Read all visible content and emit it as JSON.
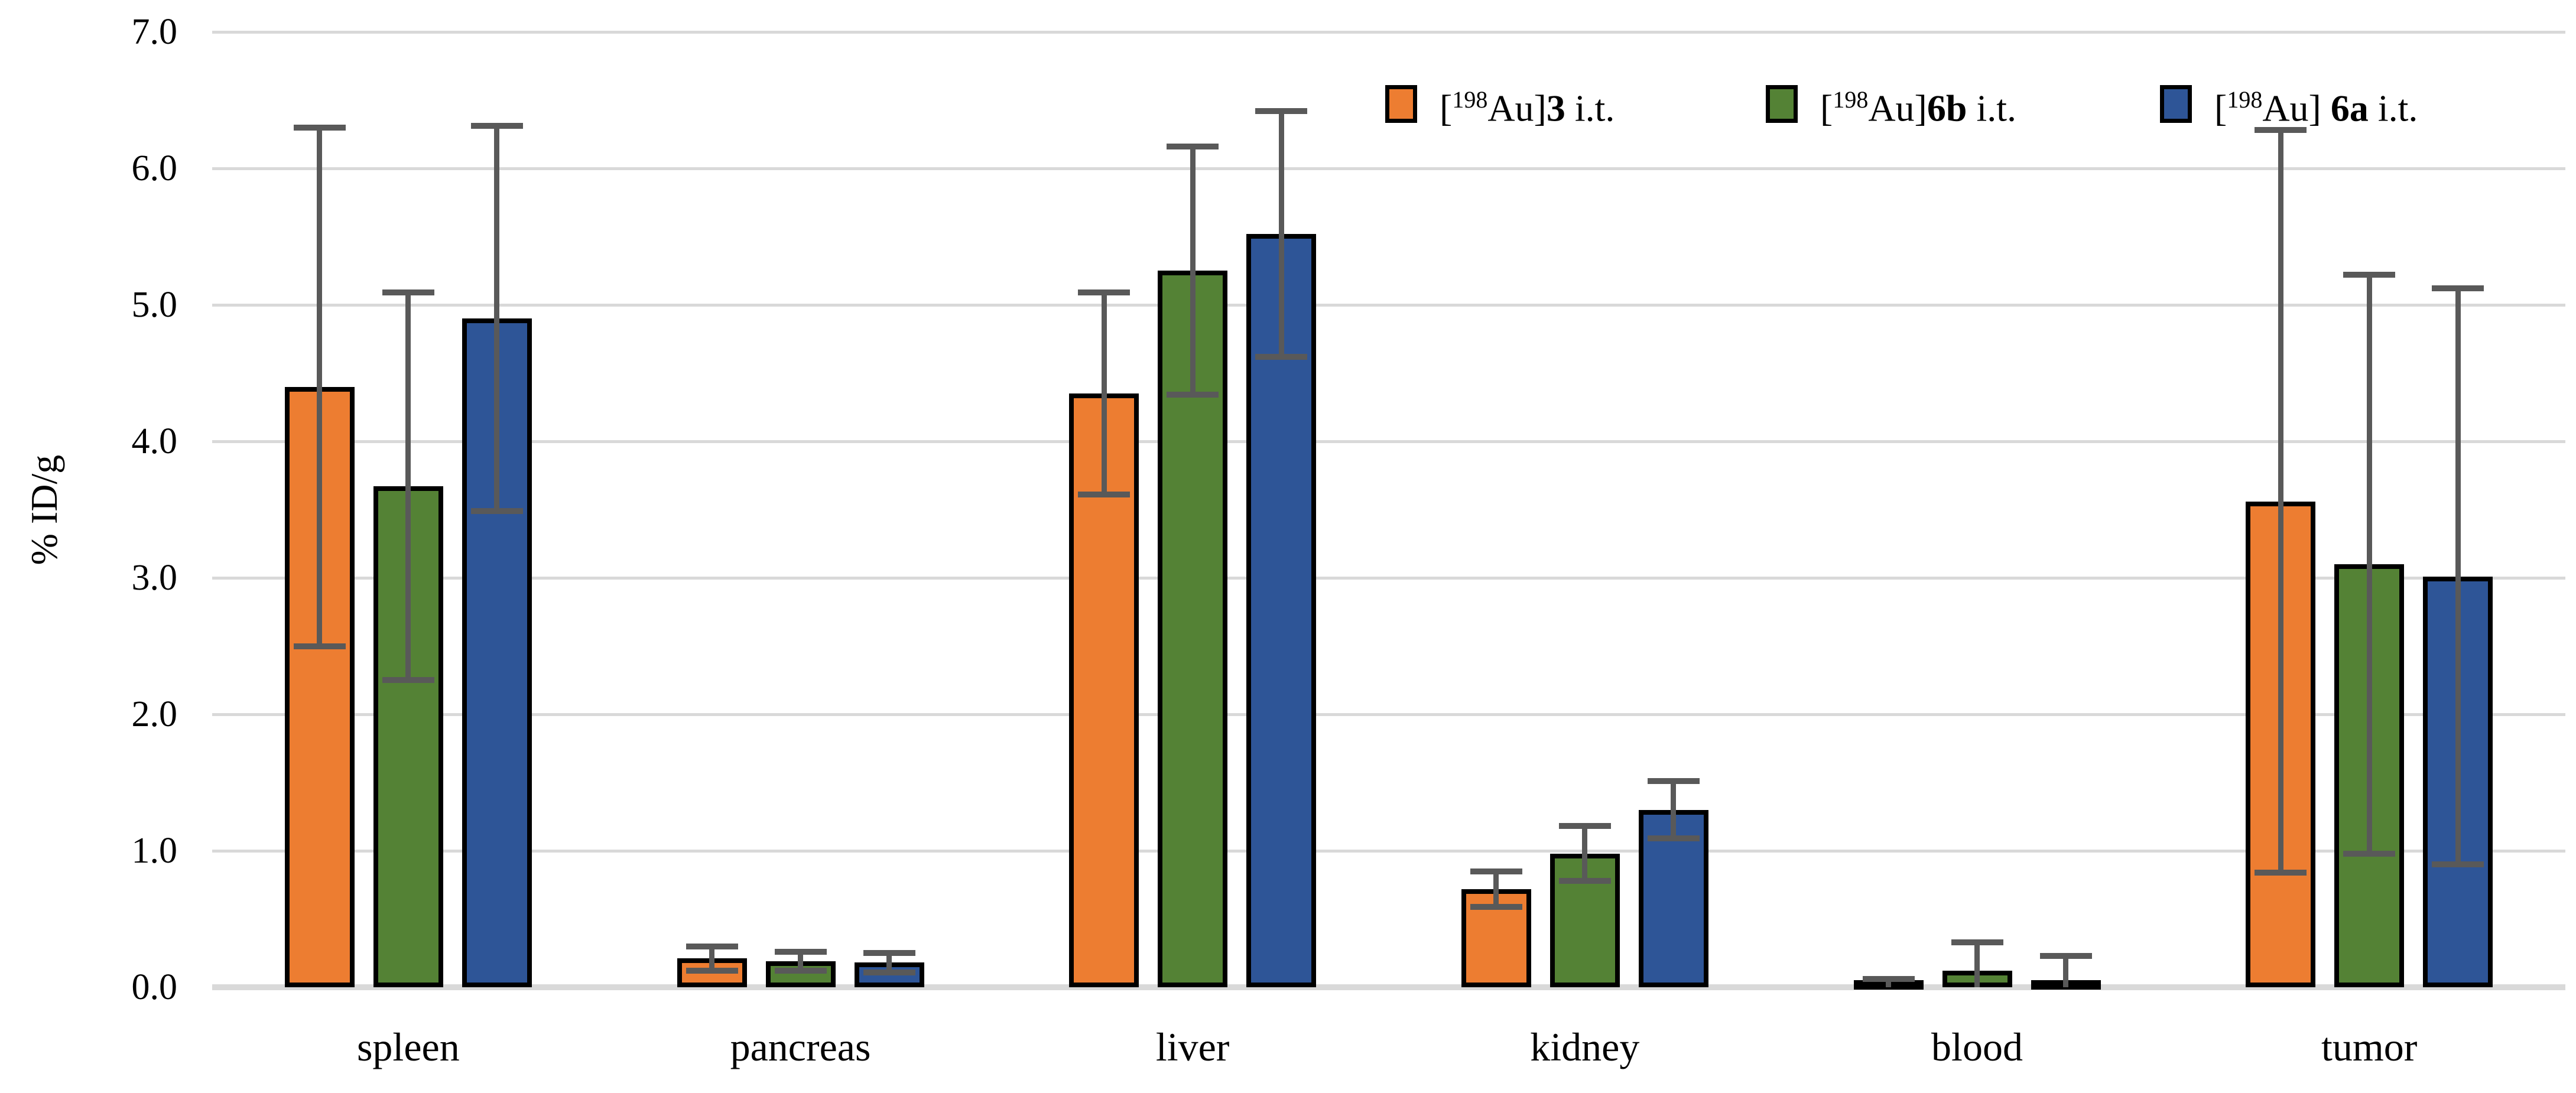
{
  "figure": {
    "background": "#FFFFFF",
    "text_color": "#000000"
  },
  "chart_data": {
    "type": "bar",
    "title": "",
    "xlabel": "",
    "ylabel": "% ID/g",
    "ylim": [
      0,
      7
    ],
    "ytick_labels": [
      "0.0",
      "1.0",
      "2.0",
      "3.0",
      "4.0",
      "5.0",
      "6.0",
      "7.0"
    ],
    "grid": true,
    "gridline_color": "#D9D9D9",
    "baseline_color": "#D9D9D9",
    "bar_border_color": "#000000",
    "error_bar_color": "#595959",
    "legend_position": "top-right",
    "categories": [
      "spleen",
      "pancreas",
      "liver",
      "kidney",
      "blood",
      "tumor"
    ],
    "series": [
      {
        "name": "[198Au]3 i.t.",
        "label_parts": {
          "bracket_isotope": "198",
          "element_close": "Au]",
          "space_before_compound": "",
          "compound": "3",
          "suffix": " i.t."
        },
        "color": "#ED7D31",
        "values": [
          4.4,
          0.21,
          4.35,
          0.72,
          0.03,
          3.56
        ],
        "errors": [
          1.9,
          0.09,
          0.74,
          0.13,
          0.03,
          2.72
        ]
      },
      {
        "name": "[198Au]6b i.t.",
        "label_parts": {
          "bracket_isotope": "198",
          "element_close": "Au]",
          "space_before_compound": "",
          "compound": "6b",
          "suffix": " i.t."
        },
        "color": "#548235",
        "values": [
          3.67,
          0.19,
          5.25,
          0.98,
          0.12,
          3.1
        ],
        "errors": [
          1.42,
          0.07,
          0.91,
          0.2,
          0.21,
          2.12
        ]
      },
      {
        "name": "[198Au] 6a i.t.",
        "label_parts": {
          "bracket_isotope": "198",
          "element_close": "Au]",
          "space_before_compound": " ",
          "compound": "6a",
          "suffix": " i.t."
        },
        "color": "#2E5597",
        "values": [
          4.9,
          0.18,
          5.52,
          1.3,
          0.02,
          3.01
        ],
        "errors": [
          1.41,
          0.07,
          0.9,
          0.21,
          0.21,
          2.11
        ]
      }
    ]
  }
}
